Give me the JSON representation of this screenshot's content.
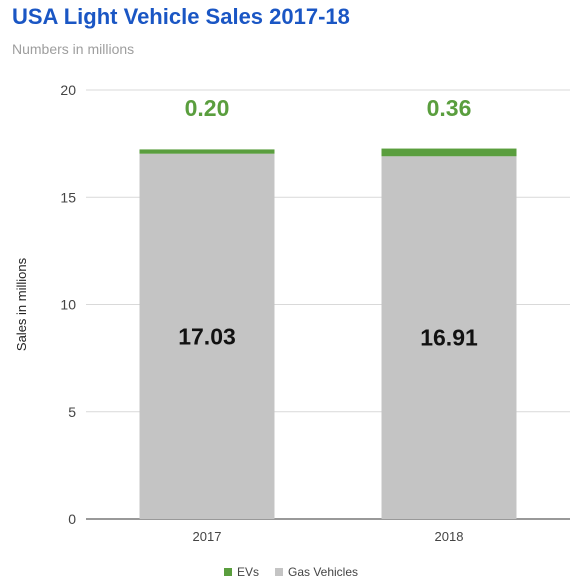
{
  "chart_data": {
    "type": "bar",
    "stacked": true,
    "title": "USA Light Vehicle Sales 2017-18",
    "subtitle": "Numbers in millions",
    "xlabel": "",
    "ylabel": "Sales in millions",
    "categories": [
      "2017",
      "2018"
    ],
    "ylim": [
      0,
      20
    ],
    "yticks": [
      0,
      5,
      10,
      15,
      20
    ],
    "grid": true,
    "legend": "bottom",
    "series": [
      {
        "name": "Gas Vehicles",
        "values": [
          17.03,
          16.91
        ],
        "labels": [
          "17.03",
          "16.91"
        ],
        "color": "#c4c4c4"
      },
      {
        "name": "EVs",
        "values": [
          0.2,
          0.36
        ],
        "labels": [
          "0.20",
          "0.36"
        ],
        "color": "#5a9e3e"
      }
    ]
  },
  "legend_items": [
    {
      "name": "EVs",
      "color": "#5a9e3e"
    },
    {
      "name": "Gas Vehicles",
      "color": "#c4c4c4"
    }
  ]
}
